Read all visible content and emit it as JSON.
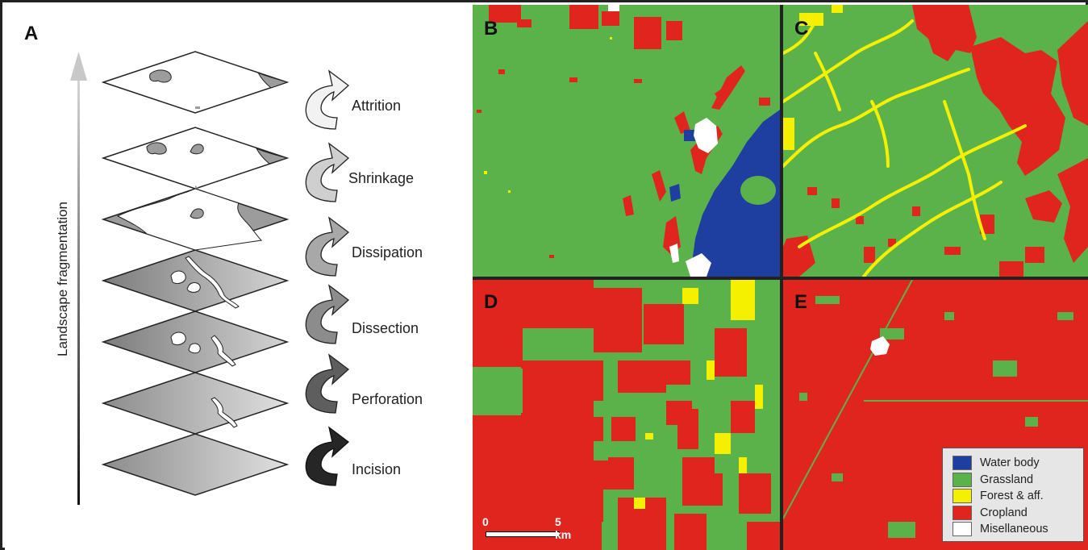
{
  "panel_a": {
    "letter": "A",
    "axis_label": "Landscape fragmentation",
    "steps": [
      {
        "label": "Attrition"
      },
      {
        "label": "Shrinkage"
      },
      {
        "label": "Dissipation"
      },
      {
        "label": "Dissection"
      },
      {
        "label": "Perforation"
      },
      {
        "label": "Incision"
      }
    ]
  },
  "maps": {
    "B": {
      "letter": "B"
    },
    "C": {
      "letter": "C"
    },
    "D": {
      "letter": "D"
    },
    "E": {
      "letter": "E"
    }
  },
  "scale_bar": {
    "start": "0",
    "end": "5 km"
  },
  "legend": {
    "items": [
      {
        "label": "Water body",
        "color": "#1f3fa0"
      },
      {
        "label": "Grassland",
        "color": "#5cb24a"
      },
      {
        "label": "Forest & aff.",
        "color": "#f5f000"
      },
      {
        "label": "Cropland",
        "color": "#e0251f"
      },
      {
        "label": "Misellaneous",
        "color": "#ffffff"
      }
    ]
  },
  "colors": {
    "water": "#1f3fa0",
    "grass": "#5cb24a",
    "forest": "#f5f000",
    "crop": "#e0251f",
    "misc": "#ffffff"
  }
}
